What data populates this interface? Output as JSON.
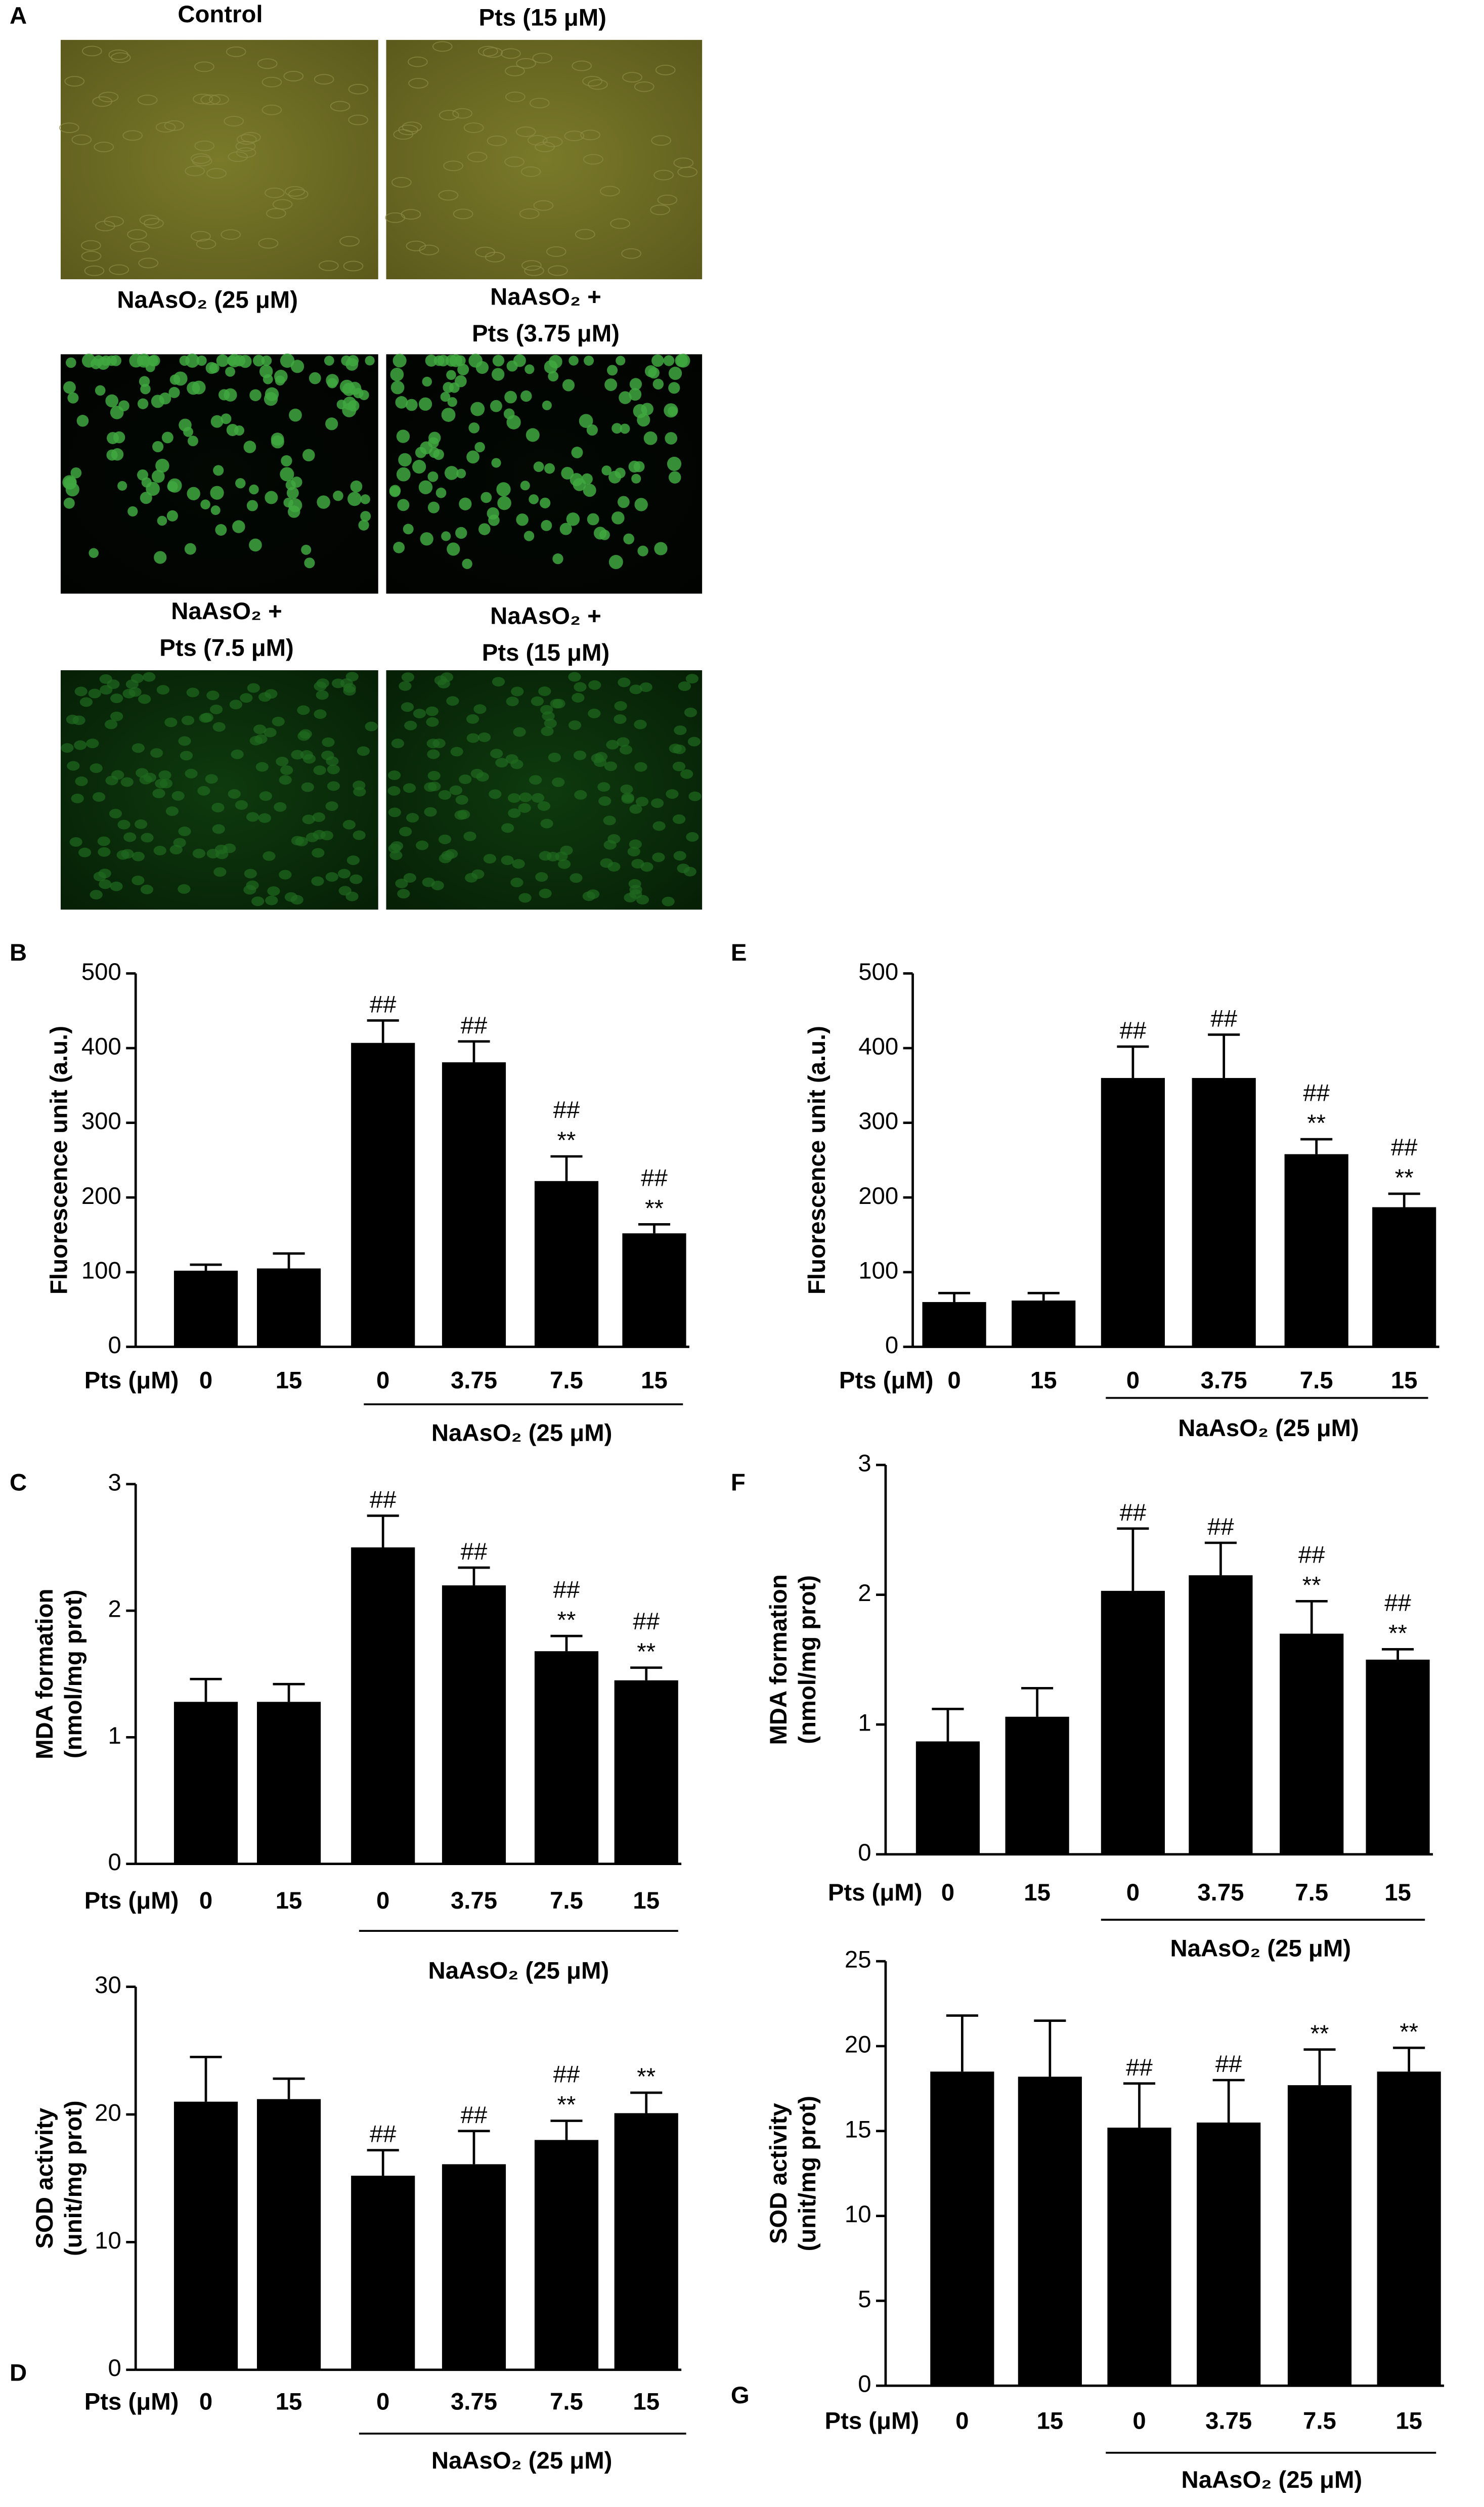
{
  "panel_a": {
    "label": "A",
    "images": [
      {
        "title": [
          "Control"
        ]
      },
      {
        "title": [
          "Pts (15 μM)"
        ]
      },
      {
        "title": [
          "NaAsO₂ (25 μM)"
        ]
      },
      {
        "title": [
          "NaAsO₂ +",
          "Pts (3.75 μM)"
        ]
      },
      {
        "title": [
          "NaAsO₂ +",
          "Pts (7.5 μM)"
        ]
      },
      {
        "title": [
          "NaAsO₂ +",
          "Pts (15 μM)"
        ]
      }
    ]
  },
  "chart_data": [
    {
      "type": "bar",
      "label": "B",
      "ylabel": [
        "Fluorescence unit (a.u.)"
      ],
      "x_label": "Pts (μM)",
      "group_label": "NaAsO₂ (25 μM)",
      "categories": [
        "0",
        "15",
        "0",
        "3.75",
        "7.5",
        "15"
      ],
      "values": [
        102,
        105,
        407,
        381,
        222,
        152
      ],
      "errors": [
        8,
        20,
        30,
        28,
        33,
        12
      ],
      "annotations": [
        [],
        [],
        [
          "##"
        ],
        [
          "##"
        ],
        [
          "##",
          "**"
        ],
        [
          "##",
          "**"
        ]
      ],
      "color": "#000000",
      "ylim": [
        0,
        500
      ],
      "yticks": [
        0,
        100,
        200,
        300,
        400,
        500
      ]
    },
    {
      "type": "bar",
      "label": "E",
      "ylabel": [
        "Fluorescence unit (a.u.)"
      ],
      "x_label": "Pts (μM)",
      "group_label": "NaAsO₂ (25 μM)",
      "categories": [
        "0",
        "15",
        "0",
        "3.75",
        "7.5",
        "15"
      ],
      "values": [
        60,
        62,
        360,
        360,
        258,
        187
      ],
      "errors": [
        12,
        10,
        42,
        58,
        20,
        18
      ],
      "annotations": [
        [],
        [],
        [
          "##"
        ],
        [
          "##"
        ],
        [
          "##",
          "**"
        ],
        [
          "##",
          "**"
        ]
      ],
      "color": "#000000",
      "ylim": [
        0,
        500
      ],
      "yticks": [
        0,
        100,
        200,
        300,
        400,
        500
      ]
    },
    {
      "type": "bar",
      "label": "C",
      "ylabel": [
        "MDA formation",
        "(nmol/mg prot)"
      ],
      "x_label": "Pts (μM)",
      "group_label": "NaAsO₂ (25 μM)",
      "categories": [
        "0",
        "15",
        "0",
        "3.75",
        "7.5",
        "15"
      ],
      "values": [
        1.28,
        1.28,
        2.5,
        2.2,
        1.68,
        1.45
      ],
      "errors": [
        0.18,
        0.14,
        0.25,
        0.14,
        0.12,
        0.1
      ],
      "annotations": [
        [],
        [],
        [
          "##"
        ],
        [
          "##"
        ],
        [
          "##",
          "**"
        ],
        [
          "##",
          "**"
        ]
      ],
      "color": "#000000",
      "ylim": [
        0,
        3
      ],
      "yticks": [
        0,
        1,
        2,
        3
      ]
    },
    {
      "type": "bar",
      "label": "F",
      "ylabel": [
        "MDA formation",
        "(nmol/mg prot)"
      ],
      "x_label": "Pts (μM)",
      "group_label": "NaAsO₂ (25 μM)",
      "categories": [
        "0",
        "15",
        "0",
        "3.75",
        "7.5",
        "15"
      ],
      "values": [
        0.87,
        1.06,
        2.03,
        2.15,
        1.7,
        1.5
      ],
      "errors": [
        0.25,
        0.22,
        0.48,
        0.25,
        0.25,
        0.08
      ],
      "annotations": [
        [],
        [],
        [
          "##"
        ],
        [
          "##"
        ],
        [
          "##",
          "**"
        ],
        [
          "##",
          "**"
        ]
      ],
      "color": "#000000",
      "ylim": [
        0,
        3
      ],
      "yticks": [
        0,
        1,
        2,
        3
      ]
    },
    {
      "type": "bar",
      "label": "D",
      "ylabel": [
        "SOD activity",
        "(unit/mg prot)"
      ],
      "x_label": "Pts (μM)",
      "group_label": "NaAsO₂ (25 μM)",
      "categories": [
        "0",
        "15",
        "0",
        "3.75",
        "7.5",
        "15"
      ],
      "values": [
        21,
        21.2,
        15.2,
        16.1,
        18,
        20.1
      ],
      "errors": [
        3.5,
        1.6,
        2,
        2.6,
        1.5,
        1.6
      ],
      "annotations": [
        [],
        [],
        [
          "##"
        ],
        [
          "##"
        ],
        [
          "##",
          "**"
        ],
        [
          "**"
        ]
      ],
      "color": "#000000",
      "ylim": [
        0,
        30
      ],
      "yticks": [
        0,
        10,
        20,
        30
      ]
    },
    {
      "type": "bar",
      "label": "G",
      "ylabel": [
        "SOD activity",
        "(unit/mg prot)"
      ],
      "x_label": "Pts (μM)",
      "group_label": "NaAsO₂ (25 μM)",
      "categories": [
        "0",
        "15",
        "0",
        "3.75",
        "7.5",
        "15"
      ],
      "values": [
        18.5,
        18.2,
        15.2,
        15.5,
        17.7,
        18.5
      ],
      "errors": [
        3.3,
        3.3,
        2.6,
        2.5,
        2.1,
        1.4
      ],
      "annotations": [
        [],
        [],
        [
          "##"
        ],
        [
          "##"
        ],
        [
          "**"
        ],
        [
          "**"
        ]
      ],
      "color": "#000000",
      "ylim": [
        0,
        25
      ],
      "yticks": [
        0,
        5,
        10,
        15,
        20,
        25
      ]
    }
  ]
}
